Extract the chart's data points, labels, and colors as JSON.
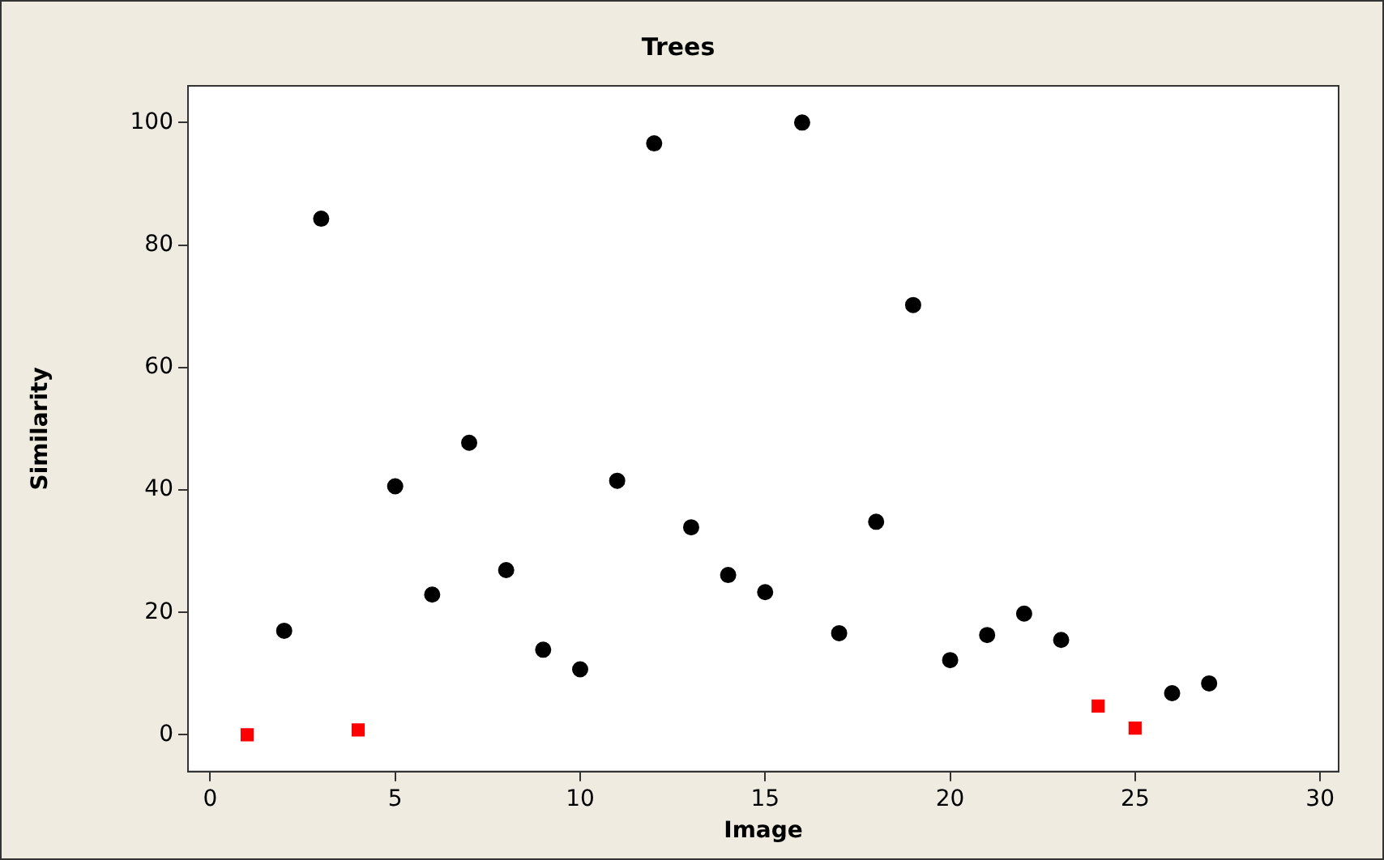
{
  "chart_data": {
    "type": "scatter",
    "title": "Trees",
    "xlabel": "Image",
    "ylabel": "Similarity",
    "series": [
      {
        "color": "#000000",
        "marker": "circle",
        "x": [
          2,
          3,
          5,
          6,
          7,
          8,
          9,
          10,
          11,
          12,
          13,
          14,
          15,
          16,
          17,
          18,
          19,
          20,
          21,
          22,
          23,
          26,
          27
        ],
        "values": [
          17.0,
          84.3,
          40.6,
          22.9,
          47.7,
          26.9,
          13.9,
          10.7,
          41.5,
          96.6,
          33.9,
          26.1,
          23.3,
          100,
          16.6,
          34.8,
          70.2,
          12.2,
          16.3,
          19.8,
          15.5,
          6.8,
          8.4
        ]
      },
      {
        "color": "#ff0000",
        "marker": "square",
        "x": [
          1,
          4,
          24,
          25
        ],
        "values": [
          0,
          0.8,
          4.7,
          1.1
        ]
      }
    ],
    "xlim": [
      -0.6,
      30.5
    ],
    "ylim": [
      -6,
      106
    ],
    "xticks": [
      0,
      5,
      10,
      15,
      20,
      25,
      30
    ],
    "yticks": [
      0,
      20,
      40,
      60,
      80,
      100
    ],
    "grid": false
  }
}
